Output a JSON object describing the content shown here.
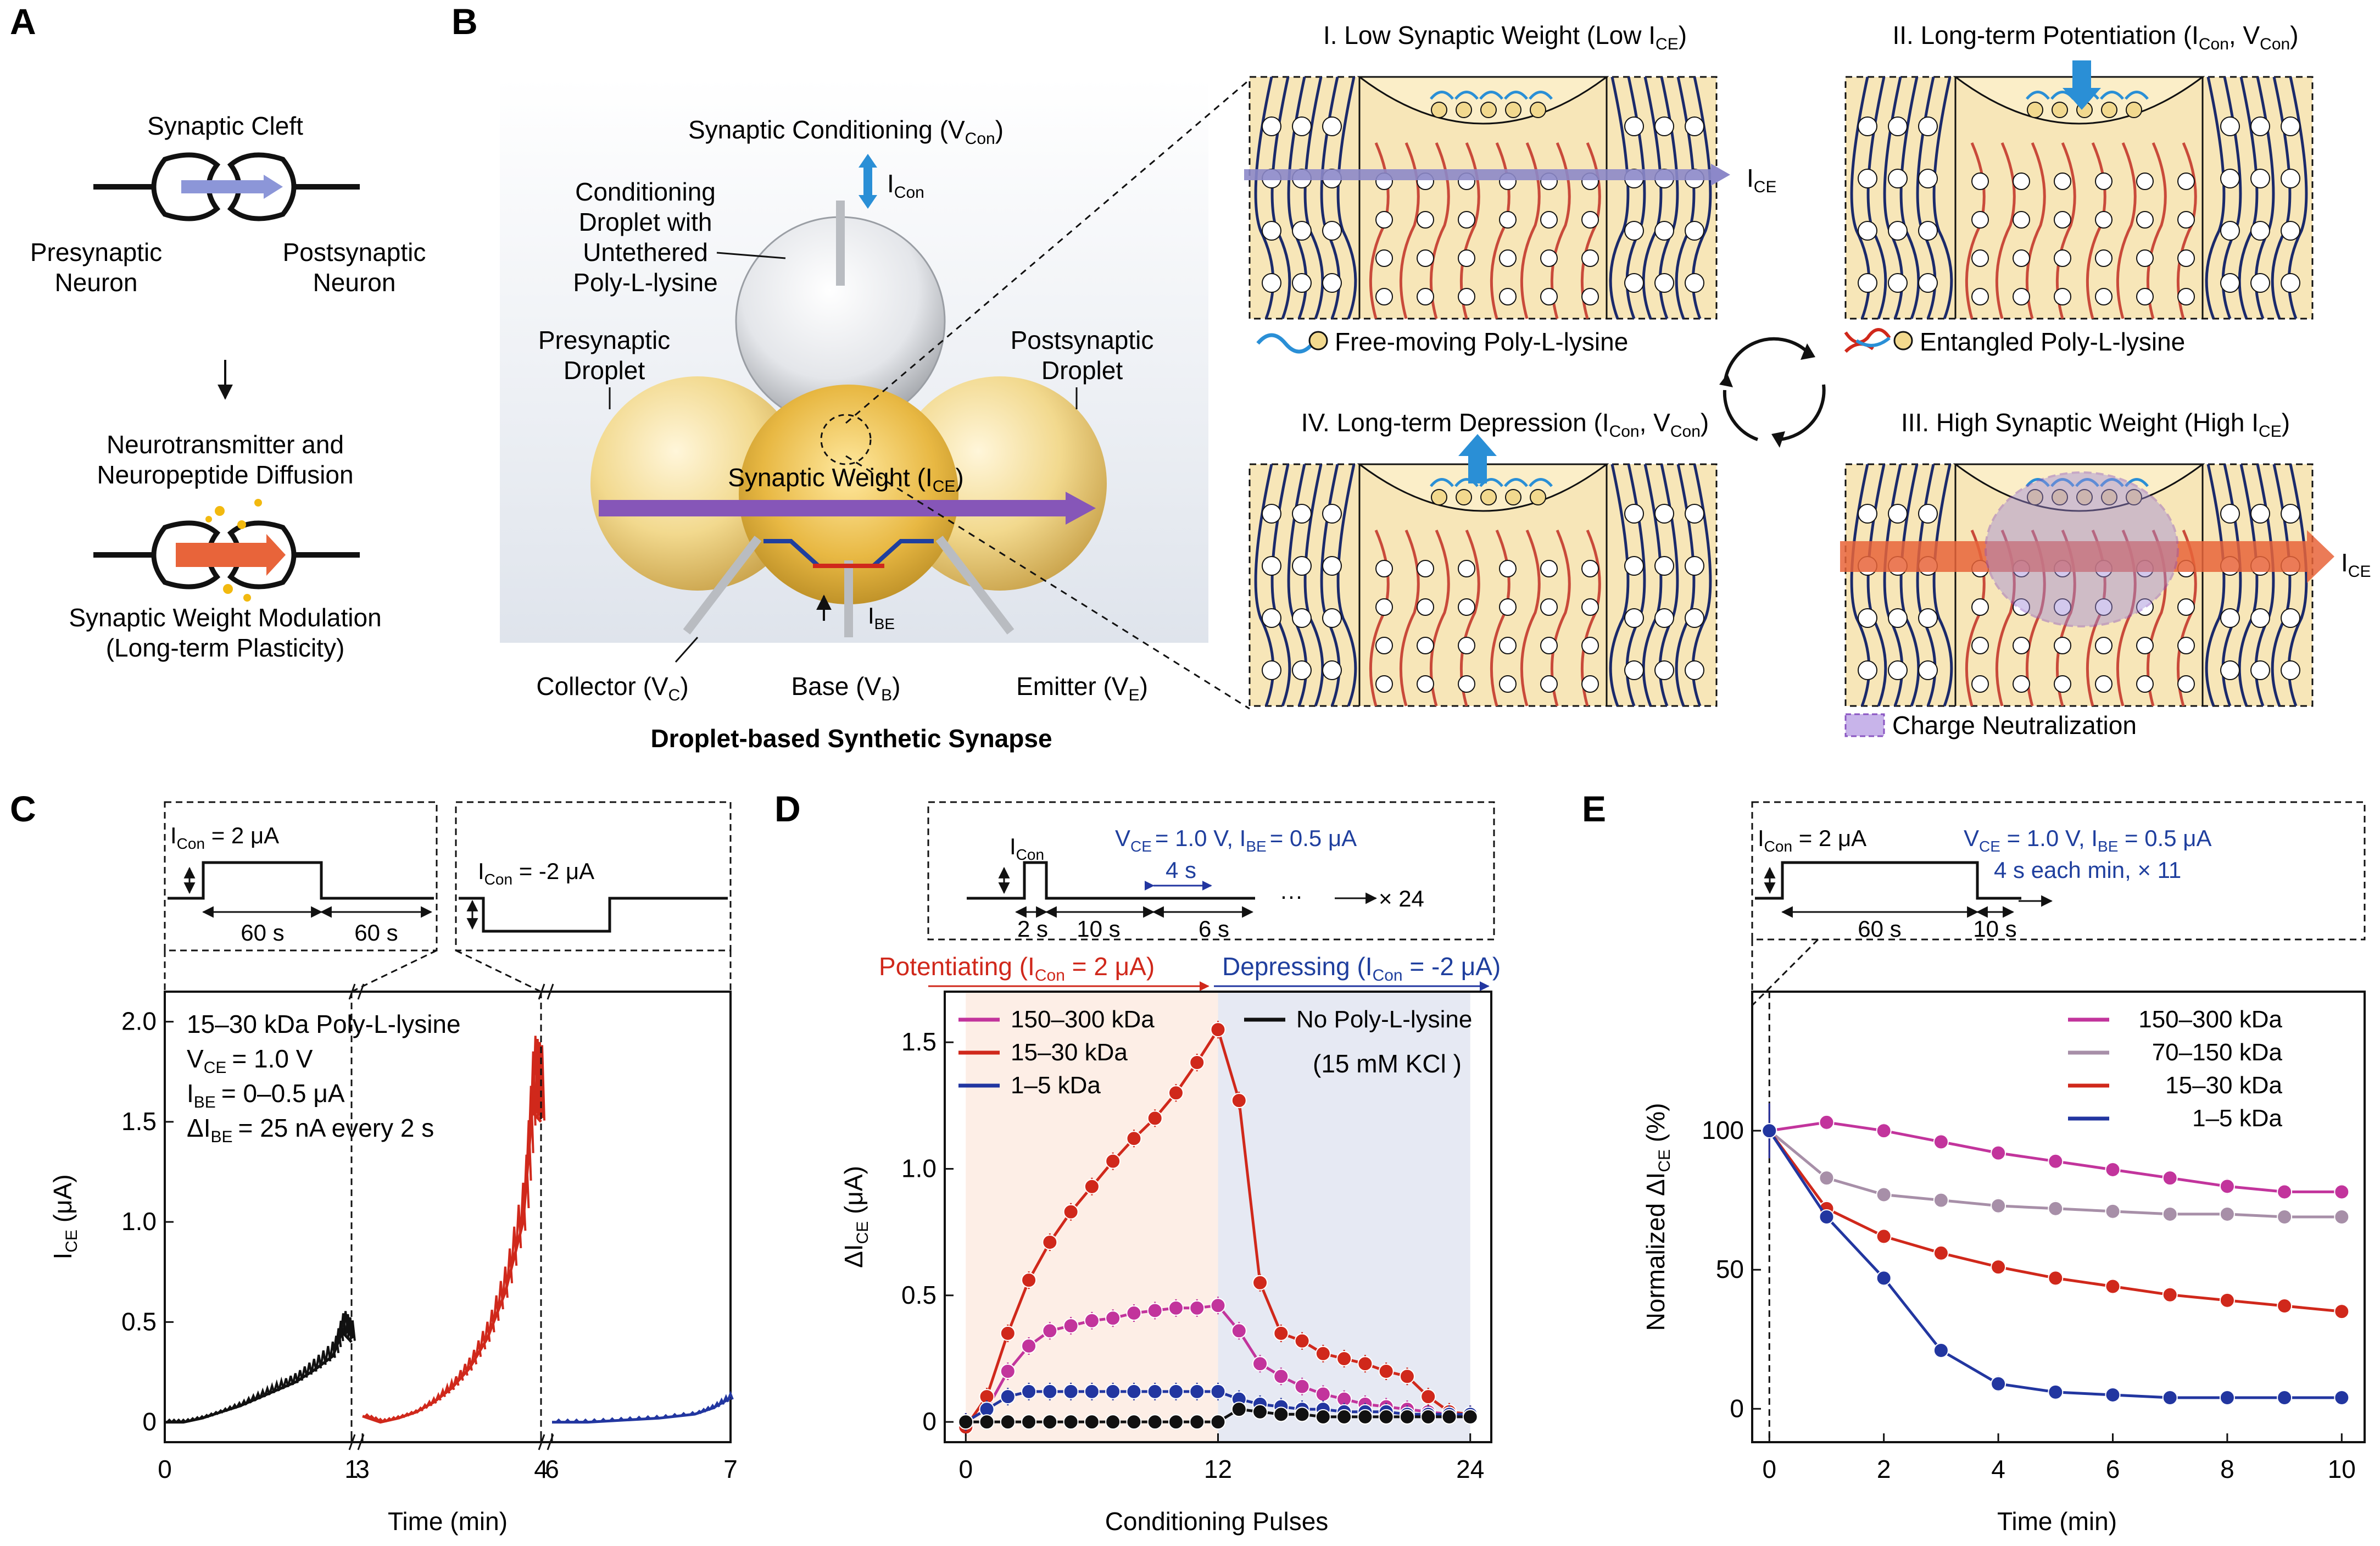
{
  "colors": {
    "red": "#d0281b",
    "blue": "#2236a0",
    "magenta": "#c2349c",
    "gray": "#a78fa8",
    "black": "#111111",
    "navy": "#1b2a6b",
    "cream": "#f7e6b8",
    "teal": "#2a8fd6",
    "purple": "#8a55c2",
    "orange": "#e8643a"
  },
  "panelA": {
    "label": "A",
    "cleft": "Synaptic Cleft",
    "pre": [
      "Presynaptic",
      "Neuron"
    ],
    "post": [
      "Postsynaptic",
      "Neuron"
    ],
    "diff": [
      "Neurotransmitter and",
      "Neuropeptide Diffusion"
    ],
    "mod": [
      "Synaptic Weight Modulation",
      "(Long-term Plasticity)"
    ]
  },
  "panelB": {
    "label": "B",
    "cond": "Synaptic Conditioning (V",
    "cond_sub": "Con",
    "icon": "I",
    "icon_sub": "Con",
    "droplet": [
      "Conditioning",
      "Droplet with",
      "Untethered",
      "Poly-L-lysine"
    ],
    "pre": [
      "Presynaptic",
      "Droplet"
    ],
    "post": [
      "Postsynaptic",
      "Droplet"
    ],
    "weight": "Synaptic Weight (I",
    "weight_sub": "CE",
    "ibe": "I",
    "ibe_sub": "BE",
    "collector": "Collector (V",
    "collector_sub": "C",
    "base": "Base (V",
    "base_sub": "B",
    "emitter": "Emitter (V",
    "emitter_sub": "E",
    "title": "Droplet-based Synthetic Synapse",
    "s1": "I. Low Synaptic Weight (Low I",
    "s2": "II. Long-term Potentiation (I",
    "s3": "III. High Synaptic Weight (High I",
    "s4": "IV. Long-term Depression (I",
    "sub_ce": "CE",
    "sub_con": "Con",
    "v_mid": ", V",
    "close": ")",
    "ice": "I",
    "free": "Free-moving Poly-L-lysine",
    "entangled": "Entangled Poly-L-lysine",
    "neutral": "Charge Neutralization"
  },
  "panelC": {
    "label": "C",
    "pulse1": "I",
    "pulse1_sub": "Con",
    "pulse1_val": " = 2 μA",
    "pulse2_val": " = -2 μA",
    "t60a": "60 s",
    "t60b": "60 s",
    "info": [
      "15–30 kDa Poly-L-lysine",
      "= 1.0 V",
      "= 0–0.5 μA",
      "= 25 nA every 2 s"
    ],
    "info_sym": [
      "V",
      "I",
      "ΔI"
    ],
    "info_sub": [
      "CE",
      "BE",
      "BE"
    ],
    "ylabel": "I",
    "ylabel_sub": "CE",
    "ylabel_unit": " (μA)",
    "xlabel": "Time (min)",
    "yticks": [
      "0",
      "0.5",
      "1.0",
      "1.5",
      "2.0"
    ],
    "xticks": [
      "0",
      "1",
      "3",
      "4",
      "6",
      "7"
    ]
  },
  "panelD": {
    "label": "D",
    "icon": "I",
    "icon_sub": "Con",
    "cond": "V",
    "cond_text": [
      "CE",
      "= 1.0 V, I",
      "BE",
      "= 0.5 μA"
    ],
    "t4": "4 s",
    "t2": "2 s",
    "t10": "10 s",
    "t6": "6 s",
    "dots": "···",
    "times": "×  24",
    "potentiating": "Potentiating (I",
    "pot_val": " = 2 μA)",
    "depressing": "Depressing (I",
    "dep_val": " = -2 μA)",
    "ylabel": "ΔI",
    "ylabel_sub": "CE",
    "ylabel_unit": " (μA)",
    "xlabel": "Conditioning Pulses",
    "yticks": [
      "0",
      "0.5",
      "1.0",
      "1.5"
    ],
    "xticks": [
      "0",
      "12",
      "24"
    ],
    "legend_extra": "(15 mM KCl )"
  },
  "panelE": {
    "label": "E",
    "icon": "I",
    "icon_sub": "Con",
    "icon_val": " = 2 μA",
    "cond_text": [
      "V",
      "CE",
      " = 1.0 V, I",
      "BE",
      " = 0.5 μA"
    ],
    "each": "4 s each min, ×  11",
    "t60": "60 s",
    "t10": "10 s",
    "ylabel": "Normalized ΔI",
    "ylabel_sub": "CE",
    "ylabel_unit": " (%)",
    "xlabel": "Time (min)",
    "yticks": [
      "0",
      "50",
      "100"
    ],
    "xticks": [
      "0",
      "2",
      "4",
      "6",
      "8",
      "10"
    ]
  },
  "chart_data": [
    {
      "type": "line",
      "panel": "C",
      "title": "",
      "xlabel": "Time (min)",
      "ylabel": "I_CE (μA)",
      "ylim": [
        -0.1,
        2.15
      ],
      "x_axis_segments": [
        [
          0,
          1
        ],
        [
          3,
          4
        ],
        [
          6,
          7
        ]
      ],
      "series": [
        {
          "name": "",
          "color": "#111111",
          "x": [
            0,
            0.1,
            0.2,
            0.3,
            0.4,
            0.5,
            0.6,
            0.7,
            0.8,
            0.9,
            0.95,
            1.0
          ],
          "y": [
            0,
            0.0,
            0.02,
            0.05,
            0.08,
            0.12,
            0.16,
            0.2,
            0.26,
            0.33,
            0.45,
            0.4
          ]
        },
        {
          "name": "",
          "color": "#d0281b",
          "x": [
            3,
            3.1,
            3.2,
            3.3,
            3.4,
            3.5,
            3.6,
            3.7,
            3.8,
            3.9,
            3.95,
            4.0
          ],
          "y": [
            0.03,
            0.0,
            0.02,
            0.05,
            0.1,
            0.17,
            0.27,
            0.42,
            0.65,
            1.0,
            1.55,
            1.5
          ]
        },
        {
          "name": "",
          "color": "#2236a0",
          "x": [
            6,
            6.2,
            6.4,
            6.6,
            6.8,
            6.9,
            7.0
          ],
          "y": [
            0.0,
            0.0,
            0.01,
            0.02,
            0.04,
            0.07,
            0.12
          ]
        }
      ]
    },
    {
      "type": "line",
      "panel": "D",
      "title": "",
      "xlabel": "Conditioning Pulses",
      "ylabel": "ΔI_CE (μA)",
      "ylim": [
        -0.08,
        1.7
      ],
      "xlim": [
        -1,
        25
      ],
      "x": [
        0,
        1,
        2,
        3,
        4,
        5,
        6,
        7,
        8,
        9,
        10,
        11,
        12,
        13,
        14,
        15,
        16,
        17,
        18,
        19,
        20,
        21,
        22,
        23,
        24
      ],
      "series": [
        {
          "name": "150–300 kDa",
          "color": "#c2349c",
          "values": [
            0,
            0.05,
            0.2,
            0.3,
            0.36,
            0.38,
            0.4,
            0.41,
            0.43,
            0.44,
            0.45,
            0.45,
            0.46,
            0.36,
            0.23,
            0.18,
            0.14,
            0.11,
            0.09,
            0.07,
            0.06,
            0.05,
            0.04,
            0.03,
            0.03
          ]
        },
        {
          "name": "15–30 kDa",
          "color": "#d0281b",
          "values": [
            -0.02,
            0.1,
            0.35,
            0.56,
            0.71,
            0.83,
            0.93,
            1.03,
            1.12,
            1.2,
            1.3,
            1.42,
            1.55,
            1.27,
            0.55,
            0.35,
            0.32,
            0.27,
            0.25,
            0.23,
            0.2,
            0.18,
            0.1,
            0.04,
            0.03
          ]
        },
        {
          "name": "1–5 kDa",
          "color": "#2236a0",
          "values": [
            0,
            0.05,
            0.1,
            0.12,
            0.12,
            0.12,
            0.12,
            0.12,
            0.12,
            0.12,
            0.12,
            0.12,
            0.12,
            0.09,
            0.07,
            0.06,
            0.05,
            0.05,
            0.04,
            0.04,
            0.04,
            0.03,
            0.03,
            0.03,
            0.03
          ]
        },
        {
          "name": "No Poly-L-lysine",
          "color": "#111111",
          "values": [
            0,
            0,
            0,
            0,
            0,
            0,
            0,
            0,
            0,
            0,
            0,
            0,
            0,
            0.05,
            0.04,
            0.03,
            0.03,
            0.02,
            0.02,
            0.02,
            0.02,
            0.02,
            0.02,
            0.02,
            0.02
          ]
        }
      ],
      "regions": [
        {
          "name": "Potentiating",
          "x": [
            0,
            12
          ]
        },
        {
          "name": "Depressing",
          "x": [
            12,
            24
          ]
        }
      ]
    },
    {
      "type": "line",
      "panel": "E",
      "title": "",
      "xlabel": "Time (min)",
      "ylabel": "Normalized ΔI_CE (%)",
      "ylim": [
        -12,
        150
      ],
      "xlim": [
        -0.3,
        10.4
      ],
      "x": [
        0,
        1,
        2,
        3,
        4,
        5,
        6,
        7,
        8,
        9,
        10
      ],
      "series": [
        {
          "name": "150–300 kDa",
          "color": "#c2349c",
          "values": [
            100,
            103,
            100,
            96,
            92,
            89,
            86,
            83,
            80,
            78,
            78
          ]
        },
        {
          "name": "70–150 kDa",
          "color": "#a78fa8",
          "values": [
            100,
            83,
            77,
            75,
            73,
            72,
            71,
            70,
            70,
            69,
            69
          ]
        },
        {
          "name": "15–30 kDa",
          "color": "#d0281b",
          "values": [
            100,
            72,
            62,
            56,
            51,
            47,
            44,
            41,
            39,
            37,
            35
          ]
        },
        {
          "name": "1–5 kDa",
          "color": "#2236a0",
          "values": [
            100,
            69,
            47,
            21,
            9,
            6,
            5,
            4,
            4,
            4,
            4
          ]
        }
      ]
    }
  ]
}
